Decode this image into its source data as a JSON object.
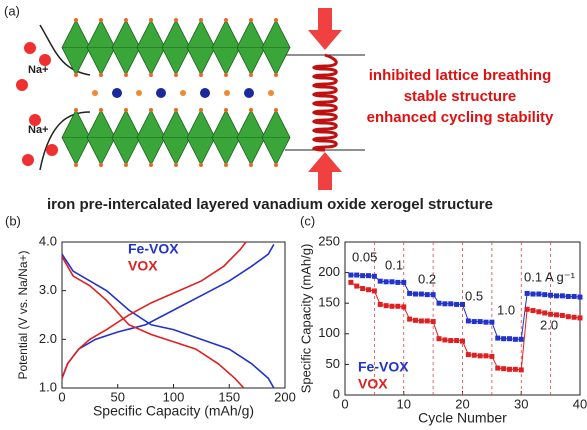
{
  "diagram": {
    "panel_label": "(a)",
    "ion_top": "Na+",
    "ion_bottom": "Na+",
    "effects": [
      "inhibited lattice breathing",
      "stable structure",
      "enhanced cycling stability"
    ],
    "caption": "iron pre-intercalated layered vanadium oxide xerogel structure"
  },
  "chart_data": [
    {
      "type": "line",
      "panel_label": "(b)",
      "x_label": "Specific Capacity (mAh/g)",
      "y_label": "Potential (V vs. Na/Na+)",
      "xlim": [
        0,
        200
      ],
      "ylim": [
        1,
        4
      ],
      "xticks": [
        0,
        50,
        100,
        150,
        200
      ],
      "yticks": [
        {
          "value": 1,
          "label": "1.0"
        },
        {
          "value": 2,
          "label": "2.0"
        },
        {
          "value": 3,
          "label": "3.0"
        },
        {
          "value": 4,
          "label": "4.0"
        }
      ],
      "series": [
        {
          "name": "Fe-VOX",
          "color": "#2233cc",
          "x": [
            0,
            10,
            25,
            40,
            60,
            80,
            100,
            125,
            150,
            170,
            185,
            190,
            null,
            0,
            5,
            15,
            30,
            50,
            75,
            100,
            125,
            150,
            170,
            185,
            190
          ],
          "values": [
            3.75,
            3.4,
            3.2,
            3.0,
            2.6,
            2.3,
            2.2,
            2.0,
            1.8,
            1.5,
            1.2,
            1.0,
            null,
            1.2,
            1.5,
            1.8,
            2.0,
            2.15,
            2.3,
            2.6,
            2.9,
            3.2,
            3.5,
            3.75,
            3.95
          ]
        },
        {
          "name": "VOX",
          "color": "#e02020",
          "x": [
            0,
            10,
            25,
            40,
            60,
            80,
            100,
            120,
            140,
            155,
            163,
            null,
            0,
            5,
            15,
            25,
            40,
            60,
            80,
            100,
            125,
            145,
            160,
            165
          ],
          "values": [
            3.7,
            3.3,
            3.1,
            2.8,
            2.3,
            2.1,
            1.95,
            1.8,
            1.5,
            1.2,
            1.0,
            null,
            1.2,
            1.5,
            1.8,
            2.0,
            2.2,
            2.5,
            2.75,
            2.95,
            3.2,
            3.5,
            3.85,
            4.0
          ]
        }
      ]
    },
    {
      "type": "line",
      "panel_label": "(c)",
      "x_label": "Cycle Number",
      "y_label": "Specific Capacity (mAh/g)",
      "xlim": [
        0,
        40
      ],
      "ylim": [
        0,
        250
      ],
      "xticks": [
        0,
        10,
        20,
        30,
        40
      ],
      "yticks": [
        0,
        50,
        100,
        150,
        200,
        250
      ],
      "dividers": [
        5,
        10,
        15,
        20,
        25,
        30,
        35
      ],
      "rate_labels": [
        "0.05",
        "0.1",
        "0.2",
        "0.5",
        "1.0",
        "2.0",
        "0.1 A g⁻¹"
      ],
      "x": [
        1,
        2,
        3,
        4,
        5,
        6,
        7,
        8,
        9,
        10,
        11,
        12,
        13,
        14,
        15,
        16,
        17,
        18,
        19,
        20,
        21,
        22,
        23,
        24,
        25,
        26,
        27,
        28,
        29,
        30,
        31,
        32,
        33,
        34,
        35,
        36,
        37,
        38,
        39,
        40
      ],
      "series": [
        {
          "name": "Fe-VOX",
          "color": "#2233cc",
          "values": [
            196,
            196,
            195,
            195,
            194,
            186,
            185,
            185,
            184,
            184,
            166,
            165,
            165,
            164,
            164,
            150,
            149,
            149,
            148,
            148,
            121,
            120,
            120,
            119,
            119,
            93,
            92,
            92,
            91,
            91,
            166,
            165,
            165,
            164,
            163,
            162,
            162,
            161,
            161,
            160
          ]
        },
        {
          "name": "VOX",
          "color": "#e02020",
          "values": [
            184,
            178,
            174,
            172,
            170,
            148,
            146,
            145,
            145,
            144,
            124,
            122,
            121,
            121,
            120,
            92,
            90,
            89,
            89,
            88,
            66,
            65,
            64,
            64,
            63,
            44,
            43,
            42,
            42,
            41,
            140,
            138,
            136,
            134,
            132,
            131,
            130,
            128,
            127,
            126
          ]
        }
      ]
    }
  ]
}
